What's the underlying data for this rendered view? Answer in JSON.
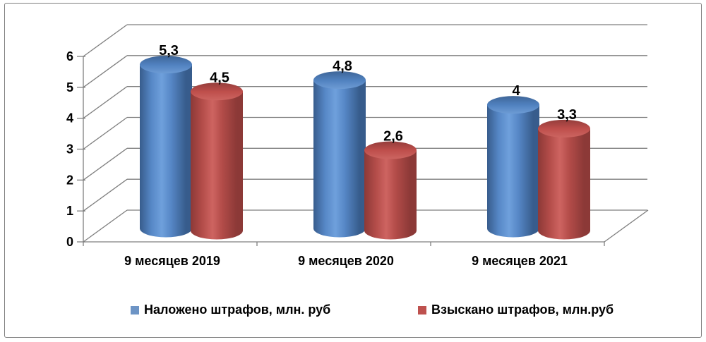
{
  "chart_data": {
    "type": "bar",
    "style": "3d-cylinder",
    "title": "",
    "xlabel": "",
    "ylabel": "",
    "categories": [
      "9 месяцев 2019",
      "9 месяцев 2020",
      "9 месяцев 2021"
    ],
    "series": [
      {
        "name": "Наложено штрафов, млн. руб",
        "values": [
          5.3,
          4.8,
          4
        ],
        "labels": [
          "5,3",
          "4,8",
          "4"
        ],
        "color": "#4E7FBC",
        "body_edge": "#375C8C",
        "body_mid": "#5687C6",
        "body_light": "#6FA0DC",
        "top_colors": [
          "#3E6597",
          "#5081BF",
          "#6D9BD4"
        ]
      },
      {
        "name": "Взыскано штрафов, млн.руб",
        "values": [
          4.5,
          2.6,
          3.3
        ],
        "labels": [
          "4,5",
          "2,6",
          "3,3"
        ],
        "color": "#BE4E4B",
        "body_edge": "#8C3937",
        "body_mid": "#B34C49",
        "body_light": "#CE6461",
        "top_colors": [
          "#943D3B",
          "#BE4E4B",
          "#CC6561"
        ]
      }
    ],
    "y_axis": {
      "min": 0,
      "max": 6,
      "step": 1,
      "ticks": [
        "0",
        "1",
        "2",
        "3",
        "4",
        "5",
        "6"
      ]
    },
    "grid": true,
    "grid_color": "#7f7f7f",
    "legend_position": "bottom"
  },
  "legend": {
    "items": [
      {
        "label": "Наложено штрафов, млн. руб",
        "color": "#6D94C5"
      },
      {
        "label": "Взыскано штрафов, млн.руб",
        "color": "#BE514E"
      }
    ]
  },
  "frame": {
    "border_color": "#7f7f7f",
    "background": "#ffffff"
  }
}
